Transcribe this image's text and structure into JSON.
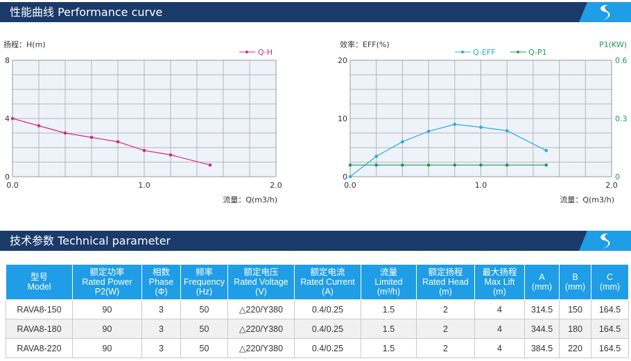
{
  "sections": {
    "curve_title": "性能曲线 Performance curve",
    "param_title": "技术参数 Technical parameter"
  },
  "chart_data": [
    {
      "type": "line",
      "ylabel": "扬程：H(m)",
      "xlabel": "流量：Q(m3/h)",
      "xlim": [
        0,
        2.0
      ],
      "ylim": [
        0,
        8
      ],
      "x_ticks": [
        "0.0",
        "1.0",
        "2.0"
      ],
      "y_ticks": [
        "0",
        "4",
        "8"
      ],
      "grid": true,
      "legend_position": "top-right",
      "series": [
        {
          "name": "Q-H",
          "color": "#d6267d",
          "x": [
            0.0,
            0.2,
            0.4,
            0.6,
            0.8,
            1.0,
            1.2,
            1.5
          ],
          "y": [
            4.0,
            3.5,
            3.0,
            2.7,
            2.4,
            1.8,
            1.5,
            0.8
          ]
        }
      ]
    },
    {
      "type": "line",
      "ylabel": "效率：EFF(%)",
      "y2label": "P1(KW)",
      "xlabel": "流量：Q(m3/h)",
      "xlim": [
        0,
        2.0
      ],
      "ylim": [
        0,
        20
      ],
      "y2lim": [
        0,
        0.6
      ],
      "x_ticks": [
        "0.0",
        "1.0",
        "2.0"
      ],
      "y_ticks": [
        "0",
        "10",
        "20"
      ],
      "y2_ticks": [
        "0",
        "0.3",
        "0.6"
      ],
      "grid": true,
      "legend_position": "top",
      "series": [
        {
          "name": "Q-EFF",
          "axis": "left",
          "color": "#2aa9e0",
          "x": [
            0.0,
            0.2,
            0.4,
            0.6,
            0.8,
            1.0,
            1.2,
            1.5
          ],
          "y": [
            0,
            3.5,
            6.0,
            7.8,
            9.0,
            8.5,
            7.9,
            4.5
          ]
        },
        {
          "name": "Q-P1",
          "axis": "right",
          "color": "#1e9a5a",
          "x": [
            0.0,
            0.2,
            0.4,
            0.6,
            0.8,
            1.0,
            1.2,
            1.5
          ],
          "y": [
            0.06,
            0.06,
            0.06,
            0.06,
            0.06,
            0.06,
            0.06,
            0.06
          ]
        }
      ]
    }
  ],
  "table": {
    "headers": [
      [
        "型号",
        "Model"
      ],
      [
        "额定功率",
        "Rated Power",
        "P2(W)"
      ],
      [
        "相数",
        "Phase",
        "(Φ)"
      ],
      [
        "频率",
        "Frequency",
        "(Hz)"
      ],
      [
        "额定电压",
        "Rated Voltage",
        "(V)"
      ],
      [
        "额定电流",
        "Rated Current",
        "(A)"
      ],
      [
        "流量",
        "Limited",
        "(m³/h)"
      ],
      [
        "额定扬程",
        "Rated Head",
        "(m)"
      ],
      [
        "最大扬程",
        "Max Lift",
        "(m)"
      ],
      [
        "A",
        "(mm)"
      ],
      [
        "B",
        "(mm)"
      ],
      [
        "C",
        "(mm)"
      ]
    ],
    "rows": [
      [
        "RAVA8-150",
        "90",
        "3",
        "50",
        "△220/Y380",
        "0.4/0.25",
        "1.5",
        "2",
        "4",
        "314.5",
        "150",
        "164.5"
      ],
      [
        "RAVA8-180",
        "90",
        "3",
        "50",
        "△220/Y380",
        "0.4/0.25",
        "1.5",
        "2",
        "4",
        "344.5",
        "180",
        "164.5"
      ],
      [
        "RAVA8-220",
        "90",
        "3",
        "50",
        "△220/Y380",
        "0.4/0.25",
        "1.5",
        "2",
        "4",
        "384.5",
        "220",
        "164.5"
      ]
    ]
  },
  "colors": {
    "banner": "#1a3a6a",
    "table_header": "#1f9de6",
    "grid": "#b5b5b5",
    "plot_bg": "#eef3fa"
  }
}
